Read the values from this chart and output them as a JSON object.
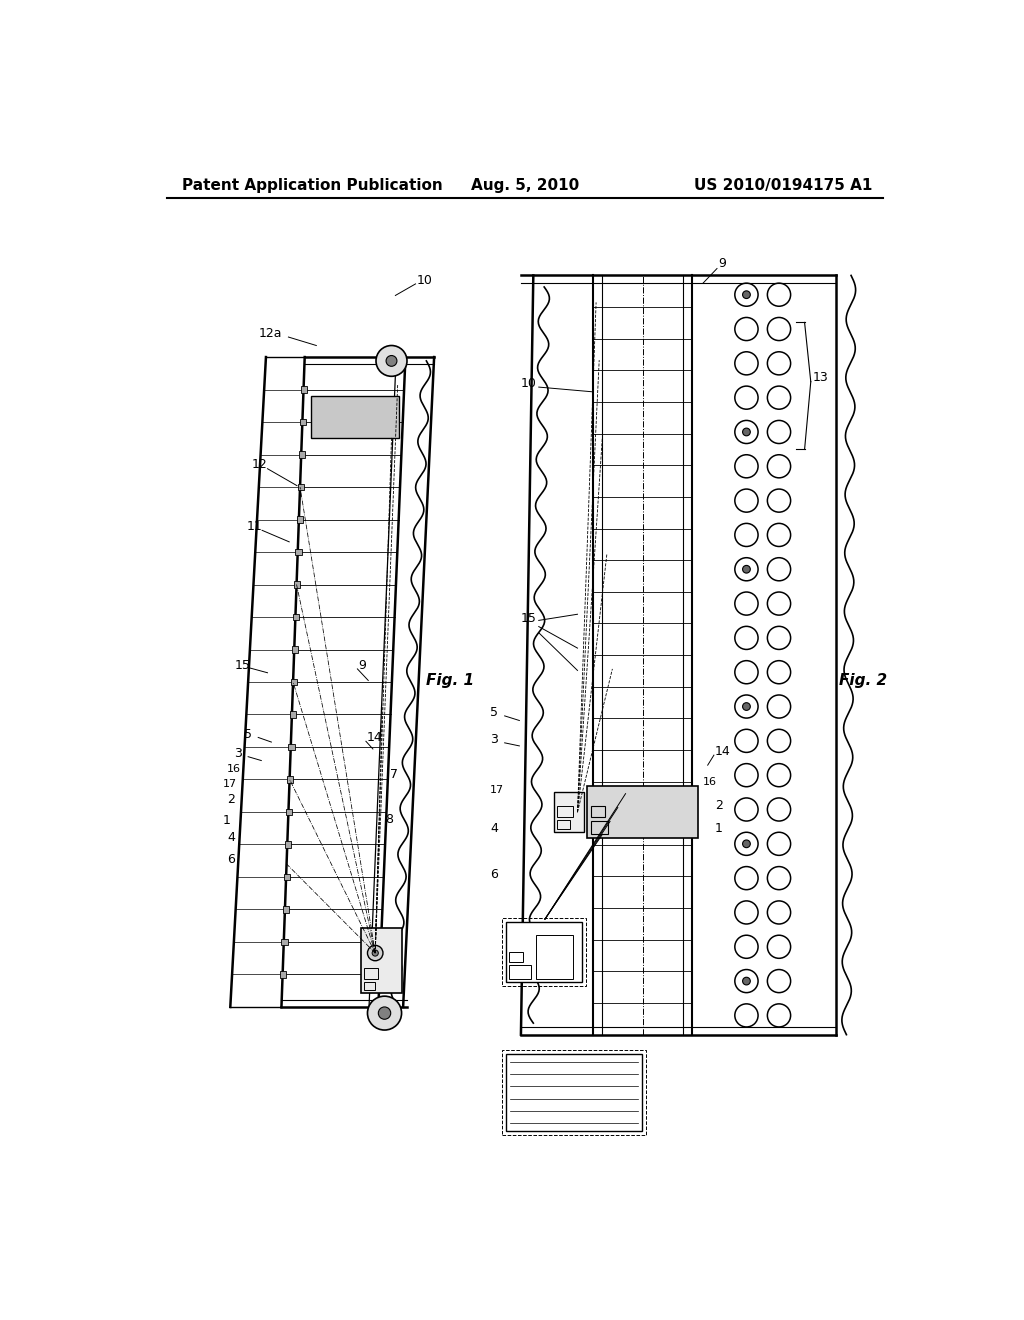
{
  "background_color": "#ffffff",
  "header": {
    "left": "Patent Application Publication",
    "center": "Aug. 5, 2010",
    "right": "US 2010/0194175 A1",
    "fontsize": 11
  }
}
